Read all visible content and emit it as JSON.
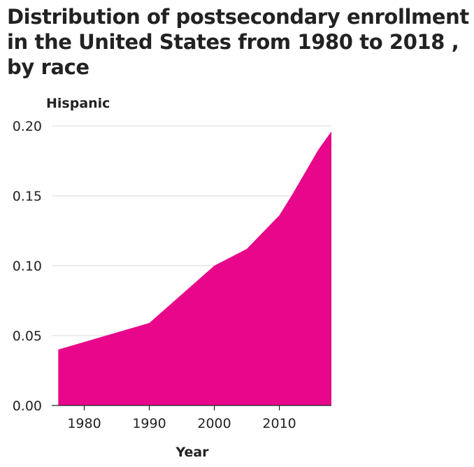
{
  "chart_data": {
    "type": "area",
    "title": "Distribution of postsecondary enrollment in the United States from 1980 to 2018 , by race",
    "xlabel": "Year",
    "ylabel": "Hispanic",
    "xlim": [
      1975,
      2018
    ],
    "ylim": [
      0,
      0.2
    ],
    "x_ticks": [
      1980,
      1990,
      2000,
      2010
    ],
    "y_ticks": [
      "0.00",
      "0.05",
      "0.10",
      "0.15",
      "0.20"
    ],
    "grid": "horizontal",
    "legend": "none",
    "color": "#e8078a",
    "series": [
      {
        "x": [
          1976,
          1990,
          2000,
          2005,
          2010,
          2012,
          2014,
          2016,
          2018
        ],
        "y": [
          0.04,
          0.059,
          0.1,
          0.112,
          0.136,
          0.151,
          0.167,
          0.183,
          0.196
        ]
      }
    ]
  }
}
